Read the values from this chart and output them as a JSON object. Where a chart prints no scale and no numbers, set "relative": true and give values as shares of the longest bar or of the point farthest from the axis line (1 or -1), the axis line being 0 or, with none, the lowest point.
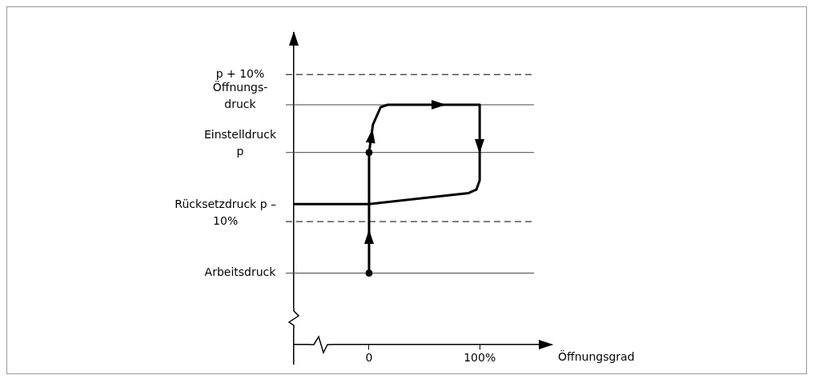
{
  "chart_data": {
    "type": "line",
    "relative": true,
    "xlabel": "Öffnungsgrad",
    "xlim": [
      -68,
      165
    ],
    "xticks": [
      0,
      {
        "value": 100,
        "label": "100%"
      }
    ],
    "grid": false,
    "legend": false,
    "line_style": "solid",
    "series": [
      {
        "type": "line",
        "color": "#000000",
        "marker": "none",
        "x": [
          0,
          0,
          3.5,
          10.5,
          17,
          100,
          100,
          97,
          90,
          0,
          -68
        ],
        "values": [
          0.298,
          0.801,
          0.917,
          0.99,
          1,
          1,
          0.685,
          0.646,
          0.632,
          0.586,
          0.586
        ]
      },
      {
        "type": "scatter",
        "color": "#000000",
        "marker": "circle",
        "x": [
          0,
          0
        ],
        "values": [
          0.298,
          0.801
        ]
      }
    ],
    "ref_lines": [
      {
        "axis": "y",
        "value": 1.126,
        "label": "p + 10%",
        "line_style": "dashed",
        "color": "#000000"
      },
      {
        "axis": "y",
        "value": 1,
        "label": "Öffnungs-\ndruck",
        "line_style": "solid",
        "color": "#444444"
      },
      {
        "axis": "y",
        "value": 0.801,
        "label": "Einstelldruck\np",
        "line_style": "solid",
        "color": "#444444"
      },
      {
        "axis": "y",
        "value": 0.513,
        "label": "Rücksetzdruck p –\n10%",
        "line_style": "dashed",
        "color": "#000000"
      },
      {
        "axis": "y",
        "value": 0.298,
        "label": "Arbeitsdruck",
        "line_style": "solid",
        "color": "#444444"
      }
    ]
  }
}
